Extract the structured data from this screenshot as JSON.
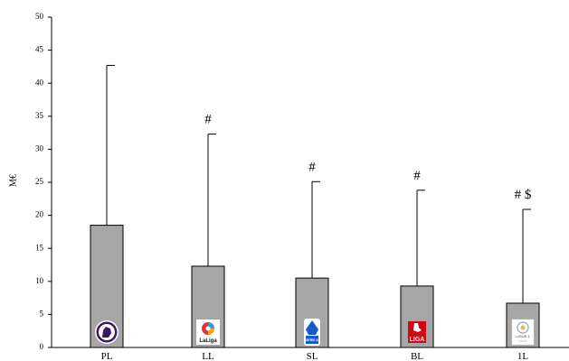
{
  "chart_data": {
    "type": "bar",
    "categories": [
      "PL",
      "LL",
      "SL",
      "BL",
      "1L"
    ],
    "values": [
      18.5,
      12.3,
      10.5,
      9.3,
      6.7
    ],
    "error_upper": [
      42.7,
      32.3,
      25.1,
      23.8,
      20.9
    ],
    "annotations": [
      "",
      "#",
      "#",
      "#",
      "#  $"
    ],
    "ylabel": "M€",
    "xlabel": "",
    "title": "",
    "ylim": [
      0,
      50
    ],
    "yticks": [
      "0",
      "5",
      "10",
      "15",
      "20",
      "25",
      "30",
      "35",
      "40",
      "45",
      "50"
    ],
    "bar_color": "#a6a6a6",
    "edge_color": "#000000",
    "grid": false,
    "logos": [
      "premier-league-logo",
      "laliga-logo",
      "serie-a-logo",
      "bundesliga-logo",
      "ligue-1-logo"
    ],
    "logo_text": [
      "",
      "LaLiga",
      "SERIE A",
      "LIGA",
      "LIGUE 1"
    ]
  }
}
